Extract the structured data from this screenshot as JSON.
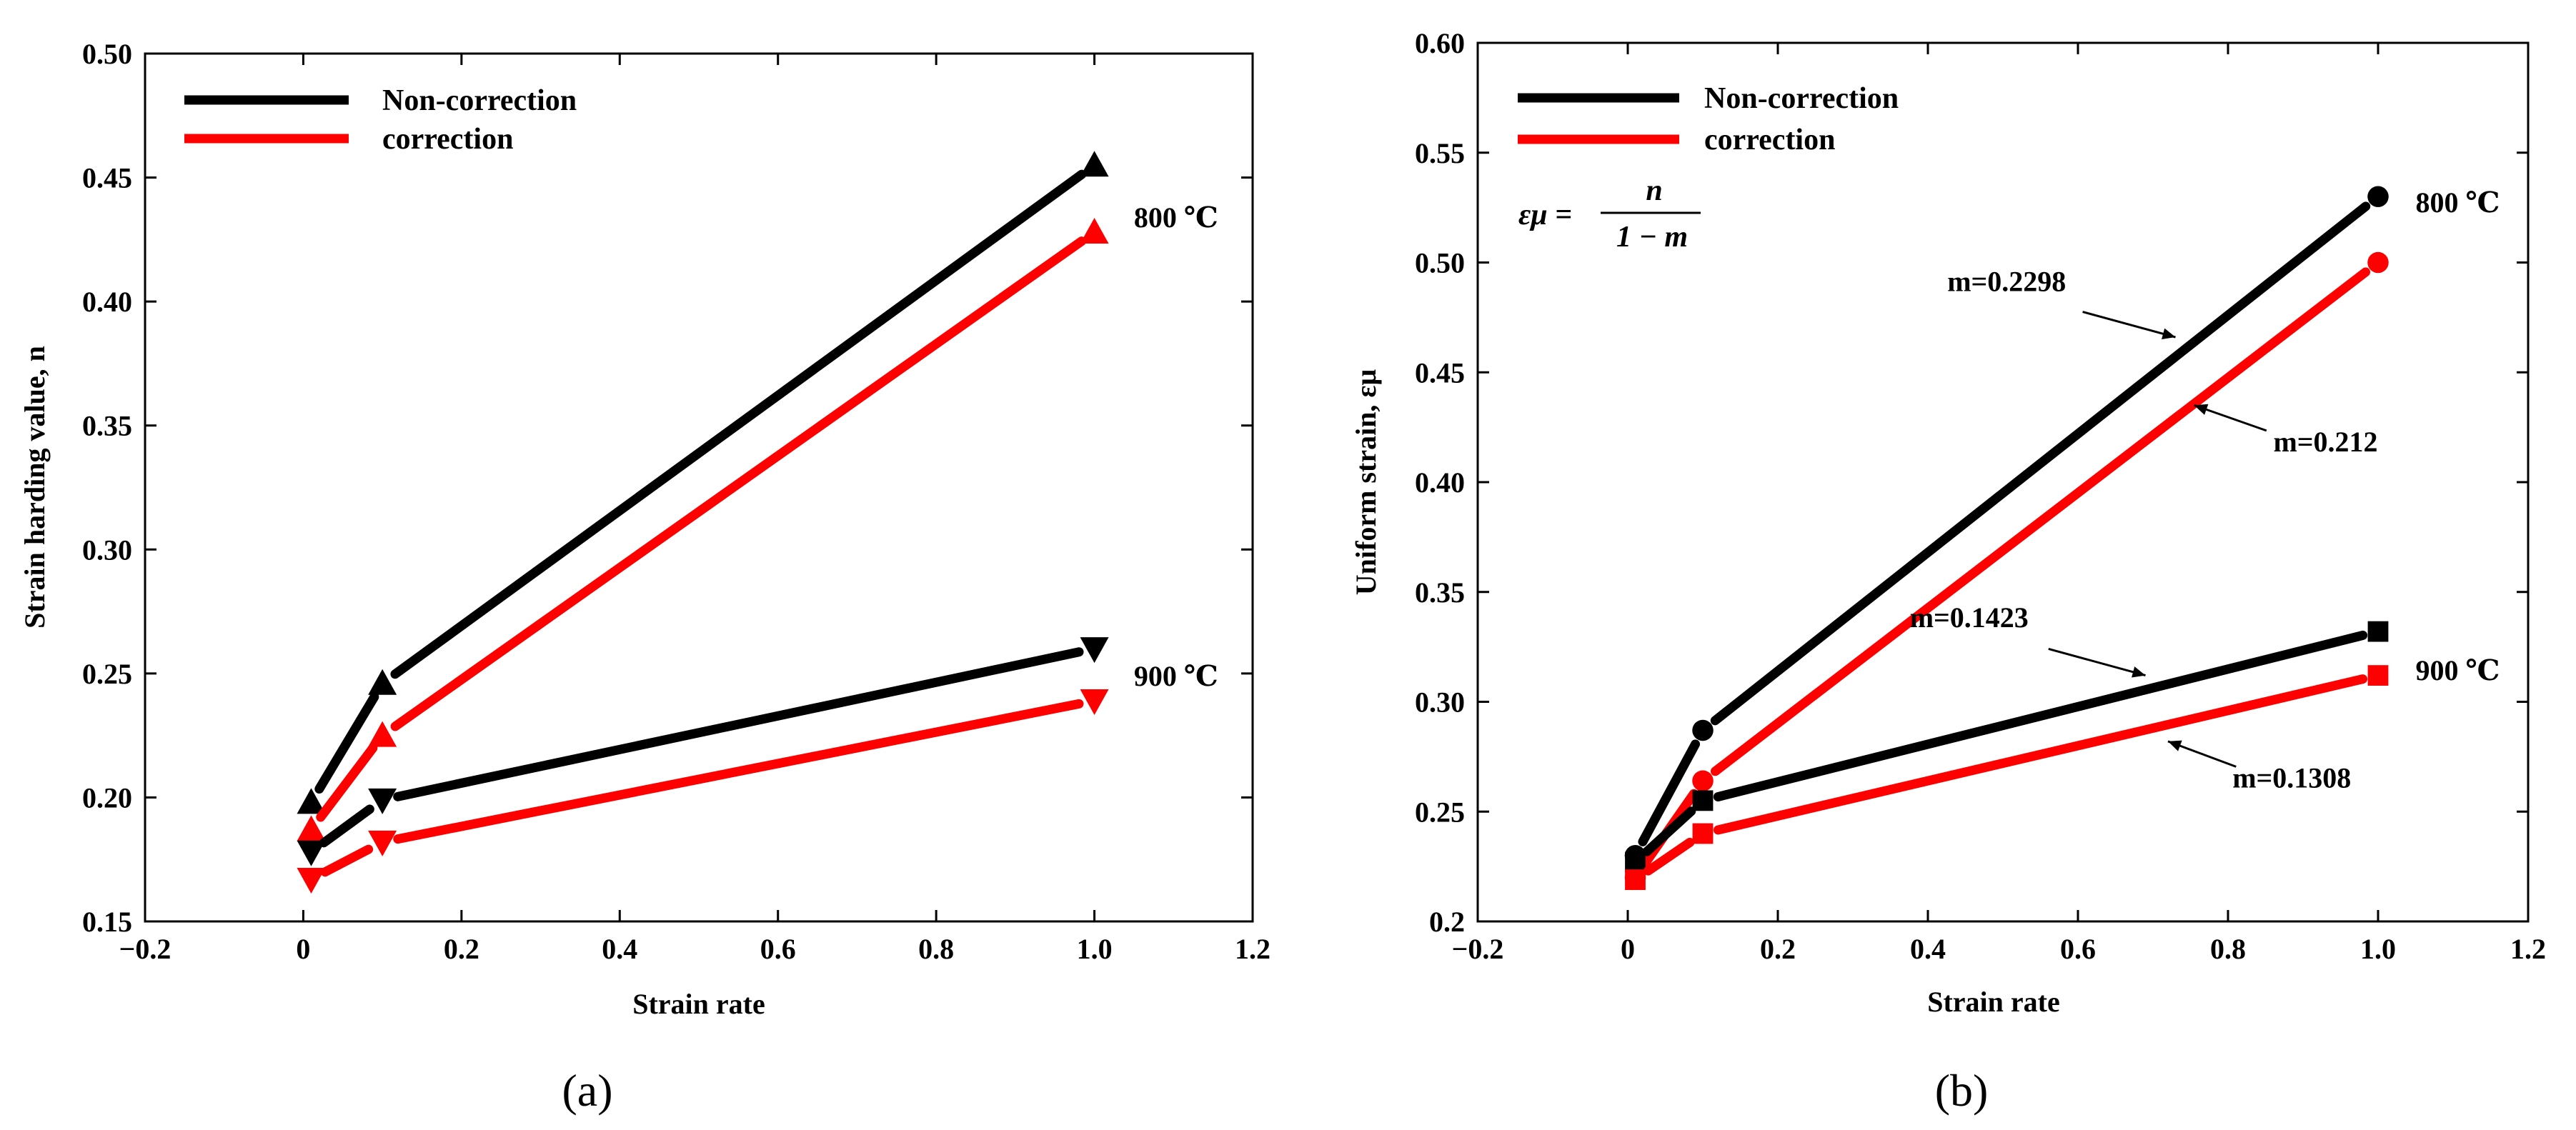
{
  "chart_data": [
    {
      "type": "line",
      "panel_label": "(a)",
      "xlabel": "Strain rate",
      "ylabel": "Strain harding value, n",
      "xlim": [
        -0.2,
        1.2
      ],
      "ylim": [
        0.15,
        0.5
      ],
      "xticks": [
        -0.2,
        0,
        0.2,
        0.4,
        0.6,
        0.8,
        1.0,
        1.2
      ],
      "xtick_labels": [
        "−0.2",
        "0",
        "0.2",
        "0.4",
        "0.6",
        "0.8",
        "1.0",
        "1.2"
      ],
      "yticks": [
        0.15,
        0.2,
        0.25,
        0.3,
        0.35,
        0.4,
        0.45,
        0.5
      ],
      "ytick_labels": [
        "0.15",
        "0.20",
        "0.25",
        "0.30",
        "0.35",
        "0.40",
        "0.45",
        "0.50"
      ],
      "legend": [
        {
          "label": "Non-correction",
          "color": "#000000"
        },
        {
          "label": "correction",
          "color": "#ff0000"
        }
      ],
      "series": [
        {
          "name": "Non-correction 800 ℃",
          "color": "#000000",
          "marker": "triangle-up",
          "x": [
            0.01,
            0.1,
            1.0
          ],
          "y": [
            0.198,
            0.246,
            0.455
          ]
        },
        {
          "name": "correction 800 ℃",
          "color": "#ff0000",
          "marker": "triangle-up",
          "x": [
            0.01,
            0.1,
            1.0
          ],
          "y": [
            0.187,
            0.225,
            0.428
          ]
        },
        {
          "name": "Non-correction 900 ℃",
          "color": "#000000",
          "marker": "triangle-down",
          "x": [
            0.01,
            0.1,
            1.0
          ],
          "y": [
            0.178,
            0.199,
            0.26
          ]
        },
        {
          "name": "correction 900 ℃",
          "color": "#ff0000",
          "marker": "triangle-down",
          "x": [
            0.01,
            0.1,
            1.0
          ],
          "y": [
            0.167,
            0.182,
            0.239
          ]
        }
      ],
      "annotations": [
        {
          "text": "800 ℃",
          "x": 1.05,
          "y": 0.43
        },
        {
          "text": "900 ℃",
          "x": 1.05,
          "y": 0.245
        }
      ]
    },
    {
      "type": "line",
      "panel_label": "(b)",
      "xlabel": "Strain rate",
      "ylabel": "Uniform strain, εμ",
      "xlim": [
        -0.2,
        1.2
      ],
      "ylim": [
        0.2,
        0.6
      ],
      "xticks": [
        -0.2,
        0,
        0.2,
        0.4,
        0.6,
        0.8,
        1.0,
        1.2
      ],
      "xtick_labels": [
        "−0.2",
        "0",
        "0.2",
        "0.4",
        "0.6",
        "0.8",
        "1.0",
        "1.2"
      ],
      "yticks": [
        0.2,
        0.25,
        0.3,
        0.35,
        0.4,
        0.45,
        0.5,
        0.55,
        0.6
      ],
      "ytick_labels": [
        "0.2",
        "0.25",
        "0.30",
        "0.35",
        "0.40",
        "0.45",
        "0.50",
        "0.55",
        "0.60"
      ],
      "legend": [
        {
          "label": "Non-correction",
          "color": "#000000"
        },
        {
          "label": "correction",
          "color": "#ff0000"
        }
      ],
      "formula": {
        "lhs": "εμ =",
        "numerator": "n",
        "denominator": "1 − m"
      },
      "series": [
        {
          "name": "Non-correction 800 ℃",
          "color": "#000000",
          "marker": "circle",
          "x": [
            0.01,
            0.1,
            1.0
          ],
          "y": [
            0.23,
            0.287,
            0.53
          ]
        },
        {
          "name": "correction 800 ℃",
          "color": "#ff0000",
          "marker": "circle",
          "x": [
            0.01,
            0.1,
            1.0
          ],
          "y": [
            0.22,
            0.264,
            0.5
          ]
        },
        {
          "name": "Non-correction 900 ℃",
          "color": "#000000",
          "marker": "square",
          "x": [
            0.01,
            0.1,
            1.0
          ],
          "y": [
            0.227,
            0.255,
            0.332
          ]
        },
        {
          "name": "correction 900 ℃",
          "color": "#ff0000",
          "marker": "square",
          "x": [
            0.01,
            0.1,
            1.0
          ],
          "y": [
            0.219,
            0.24,
            0.312
          ]
        }
      ],
      "annotations": [
        {
          "text": "800 ℃",
          "x": 1.05,
          "y": 0.523
        },
        {
          "text": "900 ℃",
          "x": 1.05,
          "y": 0.31
        }
      ],
      "arrow_annotations": [
        {
          "text": "m=0.2298",
          "text_x": 0.505,
          "text_y": 0.487,
          "tip_x": 0.73,
          "tip_y": 0.466
        },
        {
          "text": "m=0.212",
          "text_x": 0.93,
          "text_y": 0.414,
          "tip_x": 0.755,
          "tip_y": 0.435
        },
        {
          "text": "m=0.1423",
          "text_x": 0.455,
          "text_y": 0.334,
          "tip_x": 0.69,
          "tip_y": 0.312
        },
        {
          "text": "m=0.1308",
          "text_x": 0.885,
          "text_y": 0.261,
          "tip_x": 0.72,
          "tip_y": 0.282
        }
      ]
    }
  ]
}
